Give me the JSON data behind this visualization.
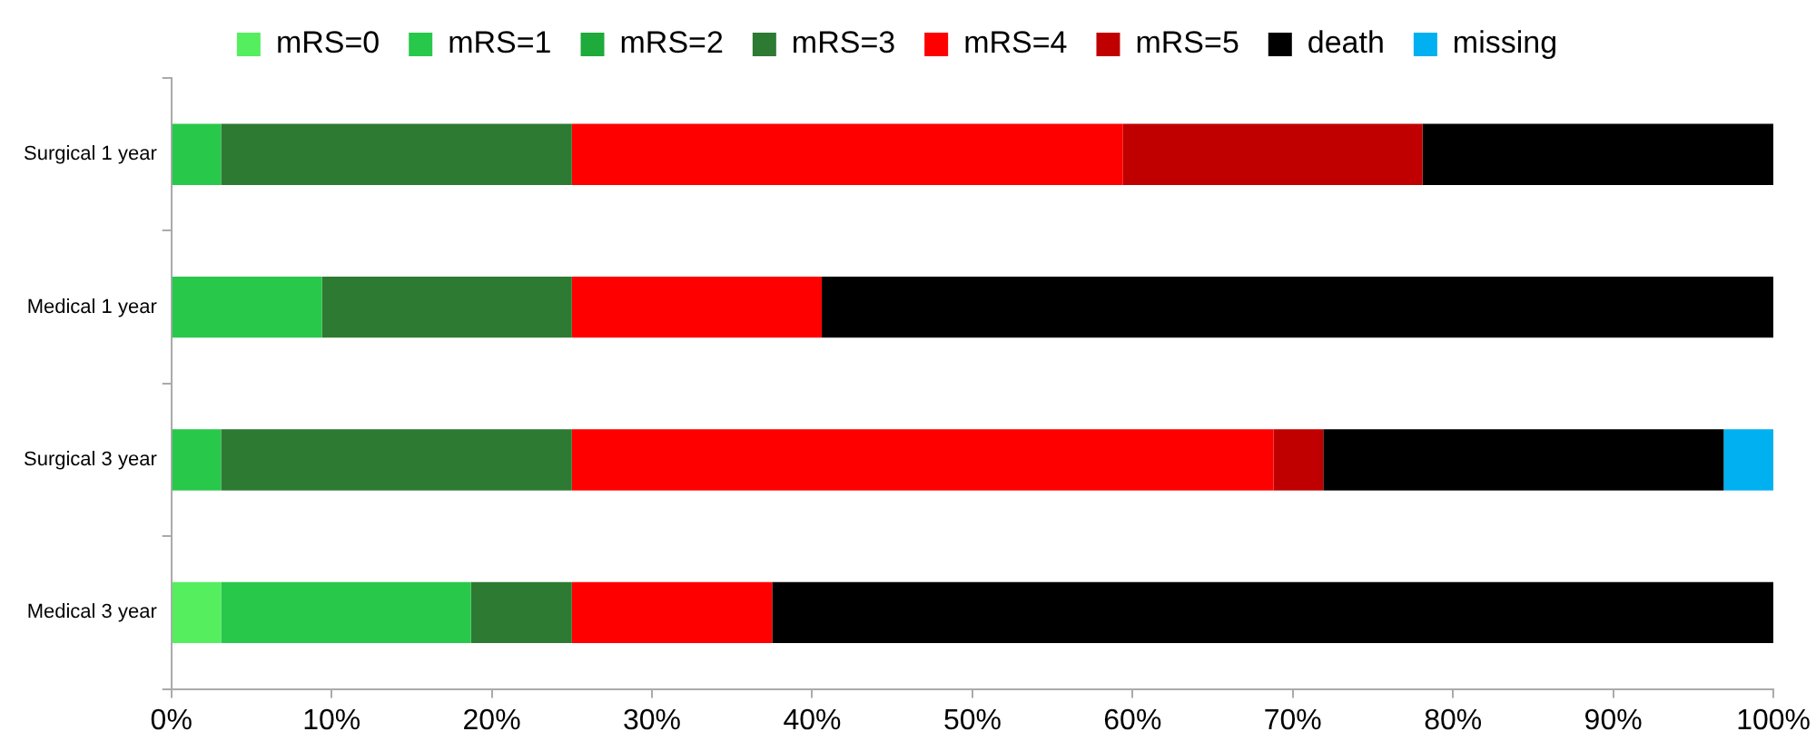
{
  "chart_data": {
    "type": "bar",
    "orientation": "horizontal",
    "stacked": true,
    "legend": "top",
    "grid": false,
    "categories": [
      "Surgical 1 year",
      "Medical 1 year",
      "Surgical 3 year",
      "Medical 3 year"
    ],
    "series": [
      {
        "name": "mRS=0",
        "color": "#55ee5f",
        "values": [
          null,
          null,
          null,
          3.1
        ]
      },
      {
        "name": "mRS=1",
        "color": "#28c84a",
        "values": [
          3.1,
          9.4,
          3.1,
          15.6
        ]
      },
      {
        "name": "mRS=2",
        "color": "#1faa3c",
        "values": [
          null,
          null,
          null,
          null
        ]
      },
      {
        "name": "mRS=3",
        "color": "#2d7a32",
        "values": [
          21.9,
          15.6,
          21.9,
          6.3
        ]
      },
      {
        "name": "mRS=4",
        "color": "#ff0000",
        "values": [
          34.4,
          15.6,
          43.8,
          12.5
        ]
      },
      {
        "name": "mRS=5",
        "color": "#c00000",
        "values": [
          18.7,
          null,
          3.1,
          null
        ]
      },
      {
        "name": "death",
        "color": "#000000",
        "values": [
          21.9,
          59.4,
          25.0,
          62.5
        ]
      },
      {
        "name": "missing",
        "color": "#00b0f0",
        "values": [
          null,
          null,
          3.1,
          null
        ]
      }
    ],
    "xlim": [
      0,
      100
    ],
    "xticks": [
      {
        "value": 0,
        "label": "0%"
      },
      {
        "value": 10,
        "label": "10%"
      },
      {
        "value": 20,
        "label": "20%"
      },
      {
        "value": 30,
        "label": "30%"
      },
      {
        "value": 40,
        "label": "40%"
      },
      {
        "value": 50,
        "label": "50%"
      },
      {
        "value": 60,
        "label": "60%"
      },
      {
        "value": 70,
        "label": "70%"
      },
      {
        "value": 80,
        "label": "80%"
      },
      {
        "value": 90,
        "label": "90%"
      },
      {
        "value": 100,
        "label": "100%"
      }
    ]
  }
}
